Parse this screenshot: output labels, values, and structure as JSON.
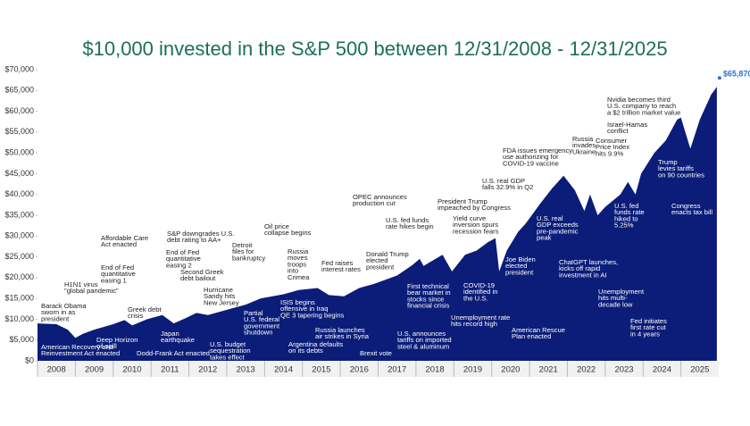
{
  "chart_data": {
    "type": "area",
    "title": "$10,000 invested in the S&P 500 between 12/31/2008 - 12/31/2025",
    "color": "#0b1d78",
    "end_label": "$65,870",
    "end_label_color": "#2f6fd8",
    "xlim": [
      2008,
      2026
    ],
    "xticks": [
      2008,
      2009,
      2010,
      2011,
      2012,
      2013,
      2014,
      2015,
      2016,
      2017,
      2018,
      2019,
      2020,
      2021,
      2022,
      2023,
      2024,
      2025
    ],
    "ylim": [
      0,
      70000
    ],
    "yticks": [
      {
        "value": 0,
        "label": "$0"
      },
      {
        "value": 5000,
        "label": "$5,000"
      },
      {
        "value": 10000,
        "label": "$10,000"
      },
      {
        "value": 15000,
        "label": "$15,000"
      },
      {
        "value": 20000,
        "label": "$20,000"
      },
      {
        "value": 25000,
        "label": "$25,000"
      },
      {
        "value": 30000,
        "label": "$30,000"
      },
      {
        "value": 35000,
        "label": "$35,000"
      },
      {
        "value": 40000,
        "label": "$40,000"
      },
      {
        "value": 45000,
        "label": "$45,000"
      },
      {
        "value": 50000,
        "label": "$50,000"
      },
      {
        "value": 55000,
        "label": "$55,000"
      },
      {
        "value": 60000,
        "label": "$60,000"
      },
      {
        "value": 65000,
        "label": "$65,000"
      },
      {
        "value": 70000,
        "label": "$70,000"
      }
    ],
    "x": [
      2008.0,
      2008.5,
      2008.8,
      2009.0,
      2009.2,
      2009.5,
      2010.0,
      2010.3,
      2010.5,
      2010.9,
      2011.3,
      2011.6,
      2011.9,
      2012.2,
      2012.5,
      2012.9,
      2013.5,
      2013.9,
      2014.5,
      2014.9,
      2015.4,
      2015.7,
      2016.1,
      2016.5,
      2016.9,
      2017.5,
      2017.9,
      2018.1,
      2018.2,
      2018.7,
      2018.95,
      2019.3,
      2019.6,
      2019.9,
      2020.1,
      2020.2,
      2020.4,
      2020.7,
      2020.9,
      2021.3,
      2021.6,
      2021.9,
      2022.2,
      2022.45,
      2022.6,
      2022.8,
      2023.0,
      2023.4,
      2023.6,
      2023.8,
      2023.95,
      2024.3,
      2024.6,
      2024.9,
      2025.0,
      2025.25,
      2025.5,
      2025.8,
      2025.95
    ],
    "values": [
      9000,
      8800,
      7500,
      5500,
      6500,
      7500,
      8800,
      9800,
      8500,
      10000,
      11000,
      9000,
      10200,
      11500,
      11000,
      12000,
      13500,
      15000,
      16000,
      17000,
      17500,
      15800,
      15500,
      17500,
      18500,
      20500,
      23000,
      24500,
      22800,
      25500,
      21500,
      25500,
      26500,
      28500,
      29500,
      21500,
      26500,
      31000,
      33000,
      38000,
      41500,
      44500,
      41000,
      36000,
      40000,
      35000,
      37000,
      40000,
      43000,
      40000,
      45000,
      50000,
      53000,
      58000,
      58500,
      51000,
      58000,
      64000,
      65870
    ],
    "annotations": [
      [
        "Barack Obama",
        "sworn in as",
        "president"
      ],
      [
        "American Recovery and",
        "Reinvestment Act enacted"
      ],
      [
        "H1N1 virus",
        "\"global pandemic\""
      ],
      [
        "Deep Horizon",
        "oil spill"
      ],
      [
        "Affordable Care",
        "Act enacted"
      ],
      [
        "End of Fed",
        "quantitative",
        "easing 1"
      ],
      [
        "End of Fed",
        "quantitative",
        "easing 2"
      ],
      [
        "S&P downgrades U.S.",
        "debt rating to AA+"
      ],
      [
        "Greek debt",
        "crisis"
      ],
      [
        "Dodd-Frank Act enacted"
      ],
      [
        "Japan",
        "earthquake"
      ],
      [
        "Second Greek",
        "debt bailout"
      ],
      [
        "Hurricane",
        "Sandy hits",
        "New Jersey"
      ],
      [
        "U.S. budget",
        "sequestration",
        "takes effect"
      ],
      [
        "Detroit",
        "files for",
        "bankruptcy"
      ],
      [
        "Partial",
        "U.S. federal",
        "government",
        "shutdown"
      ],
      [
        "Oil price",
        "collapse begins"
      ],
      [
        "Russia",
        "moves",
        "troops",
        "into",
        "Crimea"
      ],
      [
        "ISIS begins",
        "offensive in Iraq",
        "QE 3 tapering begins"
      ],
      [
        "Argentina defaults",
        "on its debts"
      ],
      [
        "Fed raises",
        "interest rates"
      ],
      [
        "Russia launches",
        "air strikes in Syria"
      ],
      [
        "OPEC announces",
        "production cut"
      ],
      [
        "Donald Trump",
        "elected",
        "president"
      ],
      [
        "Brexit vote"
      ],
      [
        "U.S. fed funds",
        "rate hikes begin"
      ],
      [
        "First technical",
        "bear market in",
        "stocks since",
        "financial crisis"
      ],
      [
        "U.S. announces",
        "tariffs on imported",
        "steel & aluminum"
      ],
      [
        "President Trump",
        "impeached by Congress"
      ],
      [
        "Yield curve",
        "inversion spurs",
        "recession fears"
      ],
      [
        "COVID-19",
        "identified in",
        "the U.S."
      ],
      [
        "Unemployment rate",
        "hits record high"
      ],
      [
        "U.S. real GDP",
        "falls 32.9% in Q2"
      ],
      [
        "FDA issues emergency",
        "use authorizing for",
        "COVID-19 vaccine"
      ],
      [
        "Joe Biden",
        "elected",
        "president"
      ],
      [
        "American Rescue",
        "Plan enacted"
      ],
      [
        "U.S. real",
        "GDP exceeds",
        "pre-pandemic",
        "peak"
      ],
      [
        "Russia",
        "invades",
        "Ukraine"
      ],
      [
        "Consumer",
        "Price Index",
        "hits 9.9%"
      ],
      [
        "ChatGPT launches,",
        "kicks off rapid",
        "investment in AI"
      ],
      [
        "U.S. fed",
        "funds rate",
        "hiked to",
        "5.25%"
      ],
      [
        "Unemployment",
        "hits multi-",
        "decade low"
      ],
      [
        "Nvidia becomes third",
        "U.S. company to reach",
        "a $2 trillion market value"
      ],
      [
        "Israel-Hamas",
        "conflict"
      ],
      [
        "Trump",
        "levies tariffs",
        "on 90 countries"
      ],
      [
        "Congress",
        "enacts tax bill"
      ],
      [
        "Fed initiates",
        "first rate cut",
        "in 4 years"
      ]
    ]
  }
}
